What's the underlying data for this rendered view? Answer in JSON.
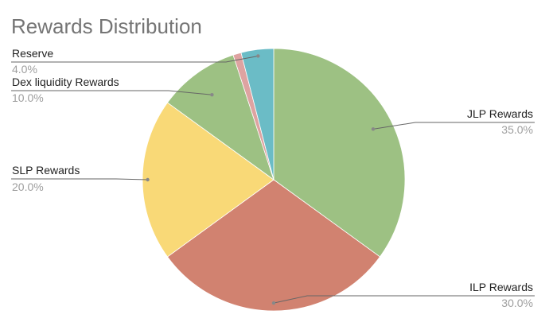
{
  "chart_data": {
    "type": "pie",
    "title": "Rewards Distribution",
    "start_angle_deg": 0,
    "direction": "clockwise",
    "slices": [
      {
        "label": "JLP Rewards",
        "value": 35.0,
        "value_label": "35.0%",
        "color": "#9dc183"
      },
      {
        "label": "ILP Rewards",
        "value": 30.0,
        "value_label": "30.0%",
        "color": "#d18270"
      },
      {
        "label": "SLP Rewards",
        "value": 20.0,
        "value_label": "20.0%",
        "color": "#f9d977"
      },
      {
        "label": "Dex liquidity Rewards",
        "value": 10.0,
        "value_label": "10.0%",
        "color": "#9dc183"
      },
      {
        "label": "",
        "value": 1.0,
        "value_label": "",
        "color": "#dea3a1"
      },
      {
        "label": "Reserve",
        "value": 4.0,
        "value_label": "4.0%",
        "color": "#6bbcc6"
      }
    ],
    "legend": "none"
  }
}
